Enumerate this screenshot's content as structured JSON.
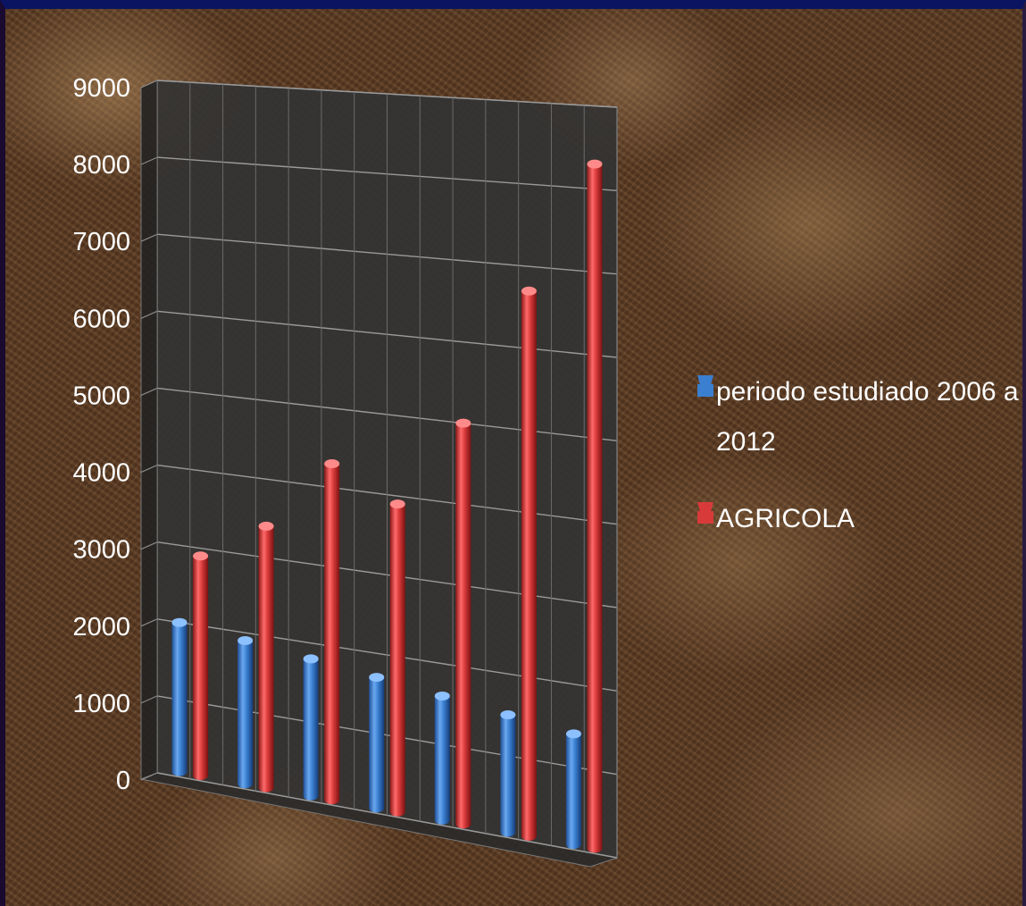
{
  "chart_data": {
    "type": "bar",
    "style": "3d-cylinder",
    "categories": [
      "",
      "",
      "",
      "",
      "",
      "",
      ""
    ],
    "series": [
      {
        "name": "periodo estudiado 2006 a 2012",
        "color": "#3a7fd0",
        "values": [
          2000,
          1900,
          1800,
          1700,
          1600,
          1500,
          1400
        ]
      },
      {
        "name": "AGRICOLA",
        "color": "#d83a3a",
        "values": [
          2900,
          3400,
          4300,
          3900,
          5000,
          6700,
          8300
        ]
      }
    ],
    "y_ticks": [
      "0",
      "1000",
      "2000",
      "3000",
      "4000",
      "5000",
      "6000",
      "7000",
      "8000",
      "9000"
    ],
    "ylim": [
      0,
      9000
    ],
    "grid": true,
    "legend": {
      "placement": "right",
      "items": [
        {
          "lines": [
            "periodo estudiado 2006 a",
            "2012"
          ],
          "color": "#3a7fd0"
        },
        {
          "lines": [
            "AGRICOLA"
          ],
          "color": "#d83a3a"
        }
      ]
    }
  }
}
